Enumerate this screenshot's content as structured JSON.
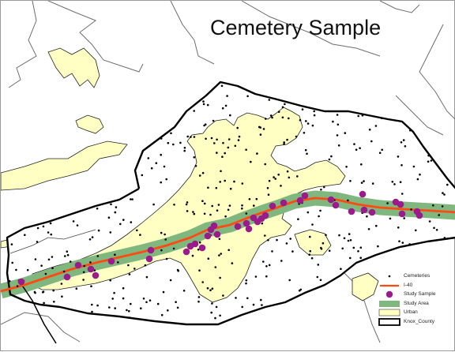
{
  "map": {
    "title": "Cemetery Sample",
    "colors": {
      "urban": "#ffffc4",
      "study_area": "#7fb77e",
      "i40": "#ff4a12",
      "sample": "#9b1a8c",
      "cemetery": "#000000",
      "county": "#000000",
      "background_lines": "#6e6e6e"
    }
  },
  "legend": {
    "items": [
      {
        "label": "Cemeteries",
        "symbol": "small-black-dot"
      },
      {
        "label": "I-40",
        "symbol": "red-line"
      },
      {
        "label": "Study Sample",
        "symbol": "purple-dot"
      },
      {
        "label": "Study Area",
        "symbol": "green-band"
      },
      {
        "label": "Urban",
        "symbol": "yellow-fill"
      },
      {
        "label": "Knox_County",
        "symbol": "black-outline"
      }
    ]
  }
}
